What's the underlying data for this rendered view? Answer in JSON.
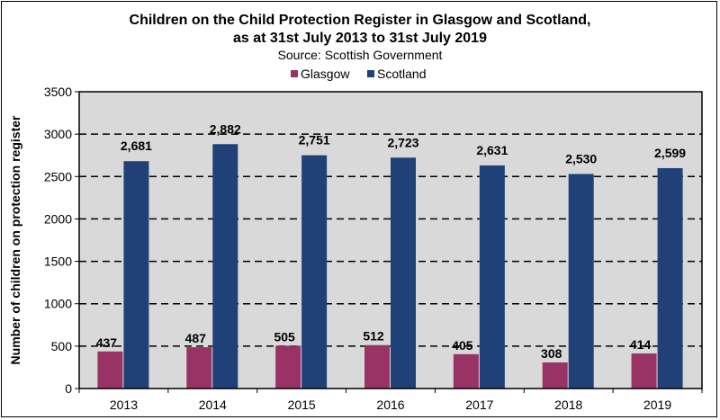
{
  "chart_data": {
    "type": "bar",
    "title": [
      "Children on the Child Protection Register in Glasgow and Scotland,",
      "as at 31st July 2013 to 31st July 2019"
    ],
    "subtitle": "Source: Scottish Government",
    "xlabel": "",
    "ylabel": "Number of children on protection register",
    "ylim": [
      0,
      3500
    ],
    "yticks": [
      0,
      500,
      1000,
      1500,
      2000,
      2500,
      3000,
      3500
    ],
    "grid": "horizontal dashed",
    "legend_position": "top",
    "categories": [
      "2013",
      "2014",
      "2015",
      "2016",
      "2017",
      "2018",
      "2019"
    ],
    "series": [
      {
        "name": "Glasgow",
        "color": "#993366",
        "values": [
          437,
          487,
          505,
          512,
          405,
          308,
          414
        ],
        "labels": [
          "437",
          "487",
          "505",
          "512",
          "405",
          "308",
          "414"
        ]
      },
      {
        "name": "Scotland",
        "color": "#1F4178",
        "values": [
          2681,
          2882,
          2751,
          2723,
          2631,
          2530,
          2599
        ],
        "labels": [
          "2,681",
          "2,882",
          "2,751",
          "2,723",
          "2,631",
          "2,530",
          "2,599"
        ]
      }
    ],
    "plot_background": "#D9D9D9"
  }
}
